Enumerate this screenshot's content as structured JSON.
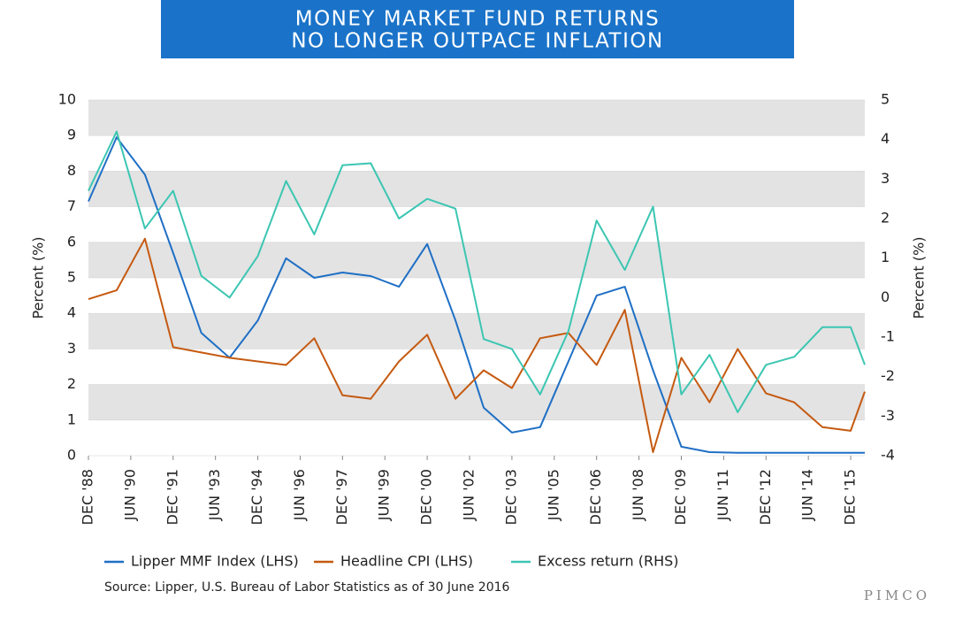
{
  "chart_data": {
    "type": "line",
    "title": [
      "MONEY MARKET FUND RETURNS",
      "NO LONGER OUTPACE INFLATION"
    ],
    "ylabel": "Percent (%)",
    "y2label": "Percent (%)",
    "source": "Source: Lipper, U.S. Bureau of Labor Statistics as of 30 June 2016",
    "brand": "PIMCO",
    "x": [
      1988.917,
      1989.917,
      1990.917,
      1991.917,
      1992.917,
      1993.917,
      1994.917,
      1995.917,
      1996.917,
      1997.917,
      1998.917,
      1999.917,
      2000.917,
      2001.917,
      2002.917,
      2003.917,
      2004.917,
      2005.917,
      2006.917,
      2007.917,
      2008.917,
      2009.917,
      2010.917,
      2011.917,
      2012.917,
      2013.917,
      2014.917,
      2015.917,
      2016.417
    ],
    "xlim": [
      1988.917,
      2016.417
    ],
    "xticks": [
      {
        "value": 1988.917,
        "label": "DEC '88"
      },
      {
        "value": 1990.417,
        "label": "JUN '90"
      },
      {
        "value": 1991.917,
        "label": "DEC '91"
      },
      {
        "value": 1993.417,
        "label": "JUN '93"
      },
      {
        "value": 1994.917,
        "label": "DEC '94"
      },
      {
        "value": 1996.417,
        "label": "JUN '96"
      },
      {
        "value": 1997.917,
        "label": "DEC '97"
      },
      {
        "value": 1999.417,
        "label": "JUN '99"
      },
      {
        "value": 2000.917,
        "label": "DEC '00"
      },
      {
        "value": 2002.417,
        "label": "JUN '02"
      },
      {
        "value": 2003.917,
        "label": "DEC '03"
      },
      {
        "value": 2005.417,
        "label": "JUN '05"
      },
      {
        "value": 2006.917,
        "label": "DEC '06"
      },
      {
        "value": 2008.417,
        "label": "JUN '08"
      },
      {
        "value": 2009.917,
        "label": "DEC '09"
      },
      {
        "value": 2011.417,
        "label": "JUN '11"
      },
      {
        "value": 2012.917,
        "label": "DEC '12"
      },
      {
        "value": 2014.417,
        "label": "JUN '14"
      },
      {
        "value": 2015.917,
        "label": "DEC '15"
      }
    ],
    "ylim": [
      0,
      10
    ],
    "yticks": [
      0,
      1,
      2,
      3,
      4,
      5,
      6,
      7,
      8,
      9,
      10
    ],
    "y2lim": [
      -4,
      5
    ],
    "y2ticks": [
      -4,
      -3,
      -2,
      -1,
      0,
      1,
      2,
      3,
      4,
      5
    ],
    "grid": true,
    "series": [
      {
        "name": "Lipper MMF Index (LHS)",
        "color": "#1f6fc5",
        "values": [
          7.15,
          8.95,
          7.9,
          5.7,
          3.45,
          2.75,
          3.8,
          5.55,
          5.0,
          5.15,
          5.05,
          4.75,
          5.95,
          3.8,
          1.35,
          0.65,
          0.8,
          2.65,
          4.5,
          4.75,
          2.4,
          0.25,
          0.1,
          0.08,
          0.08,
          0.08,
          0.08,
          0.08,
          0.08
        ]
      },
      {
        "name": "Headline CPI (LHS)",
        "color": "#c55a11",
        "values": [
          4.4,
          4.65,
          6.1,
          3.05,
          2.9,
          2.75,
          2.65,
          2.55,
          3.3,
          1.7,
          1.6,
          2.65,
          3.4,
          1.6,
          2.4,
          1.9,
          3.3,
          3.45,
          2.55,
          4.1,
          0.1,
          2.75,
          1.5,
          3.0,
          1.75,
          1.5,
          0.8,
          0.7,
          1.8
        ]
      },
      {
        "name": "Excess return (RHS)",
        "color": "#3cc6b2",
        "axis": "y2",
        "values": [
          2.7,
          4.2,
          1.75,
          2.7,
          0.55,
          0,
          1.05,
          2.95,
          1.6,
          3.35,
          3.4,
          2.0,
          2.5,
          2.25,
          -1.05,
          -1.3,
          -2.45,
          -0.85,
          1.95,
          0.7,
          2.3,
          -2.45,
          -1.45,
          -2.9,
          -1.7,
          -1.5,
          -0.75,
          -0.75,
          -1.7
        ]
      }
    ]
  }
}
